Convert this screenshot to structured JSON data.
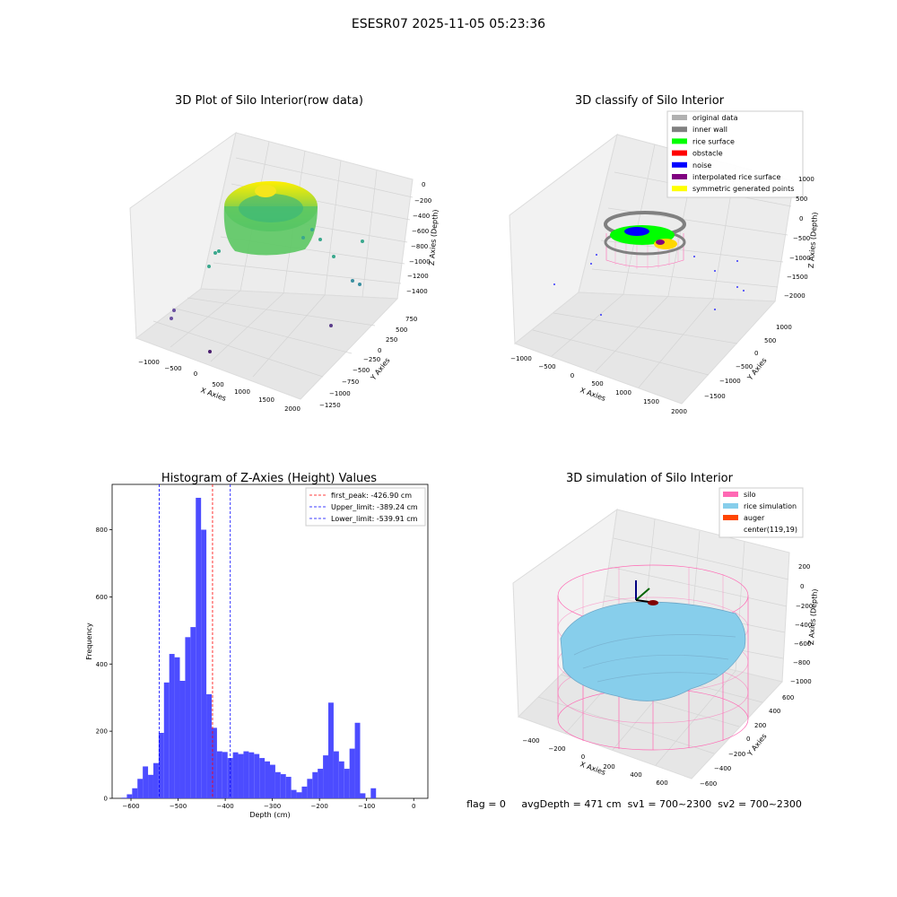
{
  "figure": {
    "suptitle": "ESESR07 2025-11-05 05:23:36",
    "status": "flag = 0     avgDepth = 471 cm  sv1 = 700~2300  sv2 = 700~2300"
  },
  "colors": {
    "hist_bar": "#4c4cff",
    "first_peak": "#ff0000",
    "limits": "#0000ff",
    "silo": "#ff69b4",
    "rice_sim": "#87ceeb",
    "auger": "#ff4500",
    "grey_pane": "#f2f2f2"
  },
  "chart_data": [
    {
      "id": "raw",
      "type": "scatter",
      "projection": "3d",
      "title": "3D Plot of Silo Interior(row data)",
      "xlabel": "X Axies",
      "ylabel": "Y Axies",
      "zlabel": "Z Axies (Depth)",
      "x_ticks": [
        "−1000",
        "−500",
        "0",
        "500",
        "1000",
        "1500",
        "2000"
      ],
      "y_ticks": [
        "750",
        "500",
        "250",
        "0",
        "−250",
        "−500",
        "−750",
        "−1000",
        "−1250"
      ],
      "z_ticks": [
        "0",
        "−200",
        "−400",
        "−600",
        "−800",
        "−1000",
        "−1200",
        "−1400"
      ],
      "colormap": "viridis",
      "grid": true
    },
    {
      "id": "classify",
      "type": "scatter",
      "projection": "3d",
      "title": "3D classify of Silo Interior",
      "xlabel": "X Axies",
      "ylabel": "Y Axies",
      "zlabel": "Z Axies (Depth)",
      "x_ticks": [
        "−1000",
        "−500",
        "0",
        "500",
        "1000",
        "1500",
        "2000"
      ],
      "y_ticks": [
        "1000",
        "500",
        "0",
        "−500",
        "−1000",
        "−1500"
      ],
      "z_ticks": [
        "1000",
        "500",
        "0",
        "−500",
        "−1000",
        "−1500",
        "−2000"
      ],
      "legend": [
        {
          "label": "original data",
          "color": "#b0b0b0"
        },
        {
          "label": "inner wall",
          "color": "#808080"
        },
        {
          "label": "rice surface",
          "color": "#00ff00"
        },
        {
          "label": "obstacle",
          "color": "#ff0000"
        },
        {
          "label": "noise",
          "color": "#0000ff"
        },
        {
          "label": "interpolated rice surface",
          "color": "#800080"
        },
        {
          "label": "symmetric generated points",
          "color": "#ffff00"
        }
      ],
      "legend_loc": "upper right",
      "grid": true
    },
    {
      "id": "hist",
      "type": "bar",
      "title": "Histogram of Z-Axies (Height) Values",
      "xlabel": "Depth (cm)",
      "ylabel": "Frequency",
      "xlim": [
        -640,
        30
      ],
      "ylim": [
        0,
        935
      ],
      "x_ticks": [
        {
          "v": -600,
          "label": "−600"
        },
        {
          "v": -500,
          "label": "−500"
        },
        {
          "v": -400,
          "label": "−400"
        },
        {
          "v": -300,
          "label": "−300"
        },
        {
          "v": -200,
          "label": "−200"
        },
        {
          "v": -100,
          "label": "−100"
        },
        {
          "v": 0,
          "label": "0"
        }
      ],
      "y_ticks": [
        {
          "v": 0,
          "label": "0"
        },
        {
          "v": 200,
          "label": "200"
        },
        {
          "v": 400,
          "label": "400"
        },
        {
          "v": 600,
          "label": "600"
        },
        {
          "v": 800,
          "label": "800"
        }
      ],
      "bin_start": -620,
      "bin_width": 11.25,
      "values": [
        2,
        12,
        30,
        58,
        95,
        70,
        105,
        195,
        345,
        430,
        420,
        350,
        480,
        510,
        895,
        800,
        310,
        210,
        140,
        138,
        120,
        137,
        132,
        140,
        137,
        132,
        120,
        110,
        100,
        78,
        72,
        64,
        25,
        18,
        35,
        58,
        78,
        88,
        128,
        285,
        140,
        110,
        88,
        148,
        225,
        15,
        0,
        30
      ],
      "vlines": [
        {
          "x": -426.9,
          "label": "first_peak: -426.90 cm",
          "color": "#ff0000"
        },
        {
          "x": -389.24,
          "label": "Upper_limit: -389.24 cm",
          "color": "#0000ff"
        },
        {
          "x": -539.91,
          "label": "Lower_limit: -539.91 cm",
          "color": "#0000ff"
        }
      ],
      "legend_loc": "upper right",
      "grid": false
    },
    {
      "id": "sim",
      "type": "surface",
      "projection": "3d",
      "title": "3D simulation of Silo Interior",
      "xlabel": "X Axies",
      "ylabel": "Y Axies",
      "zlabel": "Z Axies (Depth)",
      "x_ticks": [
        "−400",
        "−200",
        "0",
        "200",
        "400",
        "600"
      ],
      "y_ticks": [
        "600",
        "400",
        "200",
        "0",
        "−200",
        "−400",
        "−600"
      ],
      "z_ticks": [
        "200",
        "0",
        "−200",
        "−400",
        "−600",
        "−800",
        "−1000"
      ],
      "legend": [
        {
          "label": "silo",
          "color": "#ff69b4"
        },
        {
          "label": "rice simulation",
          "color": "#87ceeb"
        },
        {
          "label": "auger",
          "color": "#ff4500"
        },
        {
          "label": "center(119,19)",
          "color": ""
        }
      ],
      "legend_loc": "upper right",
      "grid": true
    }
  ]
}
